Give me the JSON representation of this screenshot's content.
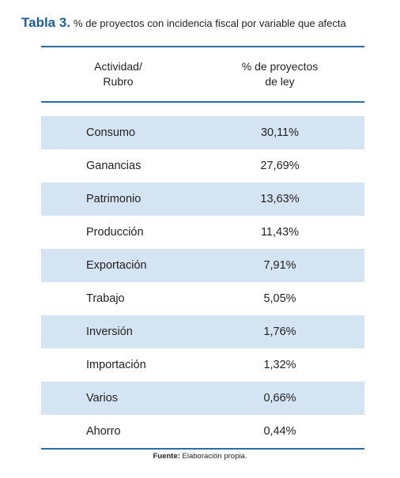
{
  "title": {
    "label": "Tabla 3.",
    "text": "% de proyectos con incidencia fiscal por variable que afecta"
  },
  "table": {
    "headers": {
      "col1_line1": "Actividad/",
      "col1_line2": "Rubro",
      "col2_line1": "% de proyectos",
      "col2_line2": "de ley"
    },
    "rows": [
      {
        "activity": "Consumo",
        "percent": "30,11%"
      },
      {
        "activity": "Ganancias",
        "percent": "27,69%"
      },
      {
        "activity": "Patrimonio",
        "percent": "13,63%"
      },
      {
        "activity": "Producción",
        "percent": "11,43%"
      },
      {
        "activity": "Exportación",
        "percent": "7,91%"
      },
      {
        "activity": "Trabajo",
        "percent": "5,05%"
      },
      {
        "activity": "Inversión",
        "percent": "1,76%"
      },
      {
        "activity": "Importación",
        "percent": "1,32%"
      },
      {
        "activity": "Varios",
        "percent": "0,66%"
      },
      {
        "activity": "Ahorro",
        "percent": "0,44%"
      }
    ]
  },
  "source": {
    "label": "Fuente:",
    "text": "Elaboración propia."
  },
  "colors": {
    "title_accent": "#1f5f96",
    "rule": "#2e6fa3",
    "row_shade": "#d4e4f2"
  }
}
